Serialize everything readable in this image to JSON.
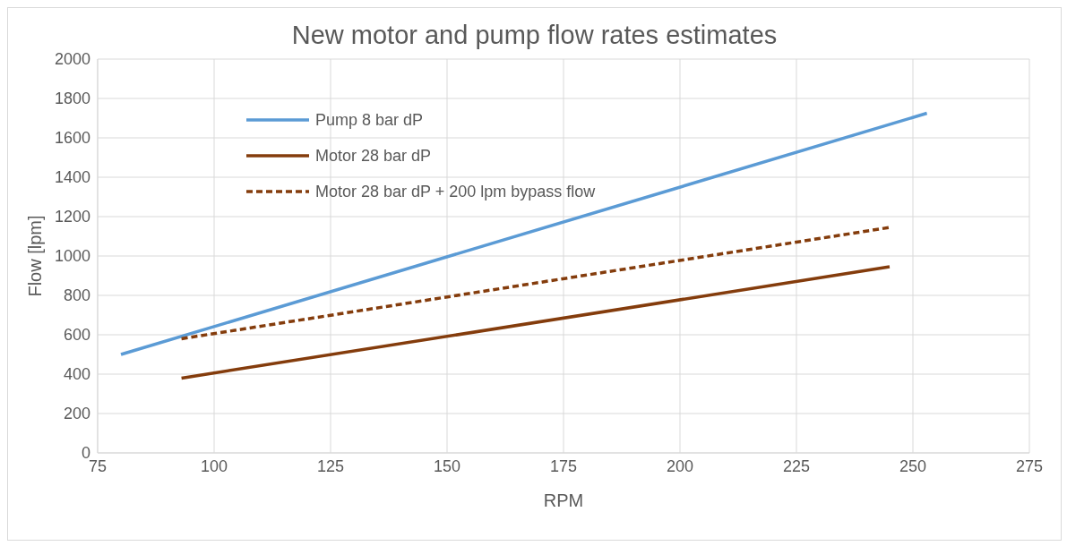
{
  "chart_data": {
    "type": "line",
    "title": "New motor and pump flow rates estimates",
    "xlabel": "RPM",
    "ylabel": "Flow [lpm]",
    "series": [
      {
        "name": "Pump 8 bar dP",
        "color": "#5b9bd5",
        "x": [
          80,
          253
        ],
        "values": [
          500,
          1725
        ],
        "line_style": "solid"
      },
      {
        "name": "Motor 28 bar dP",
        "color": "#843c0c",
        "x": [
          93,
          245
        ],
        "values": [
          380,
          945
        ],
        "line_style": "solid"
      },
      {
        "name": "Motor 28 bar dP + 200 lpm bypass flow",
        "color": "#843c0c",
        "x": [
          93,
          245
        ],
        "values": [
          580,
          1145
        ],
        "line_style": "dashed"
      }
    ],
    "xlim": [
      75,
      275
    ],
    "xticks": [
      75,
      100,
      125,
      150,
      175,
      200,
      225,
      250,
      275
    ],
    "ylim": [
      0,
      2000
    ],
    "yticks": [
      0,
      200,
      400,
      600,
      800,
      1000,
      1200,
      1400,
      1600,
      1800,
      2000
    ],
    "grid": true,
    "legend": "top left",
    "marker": "none"
  }
}
